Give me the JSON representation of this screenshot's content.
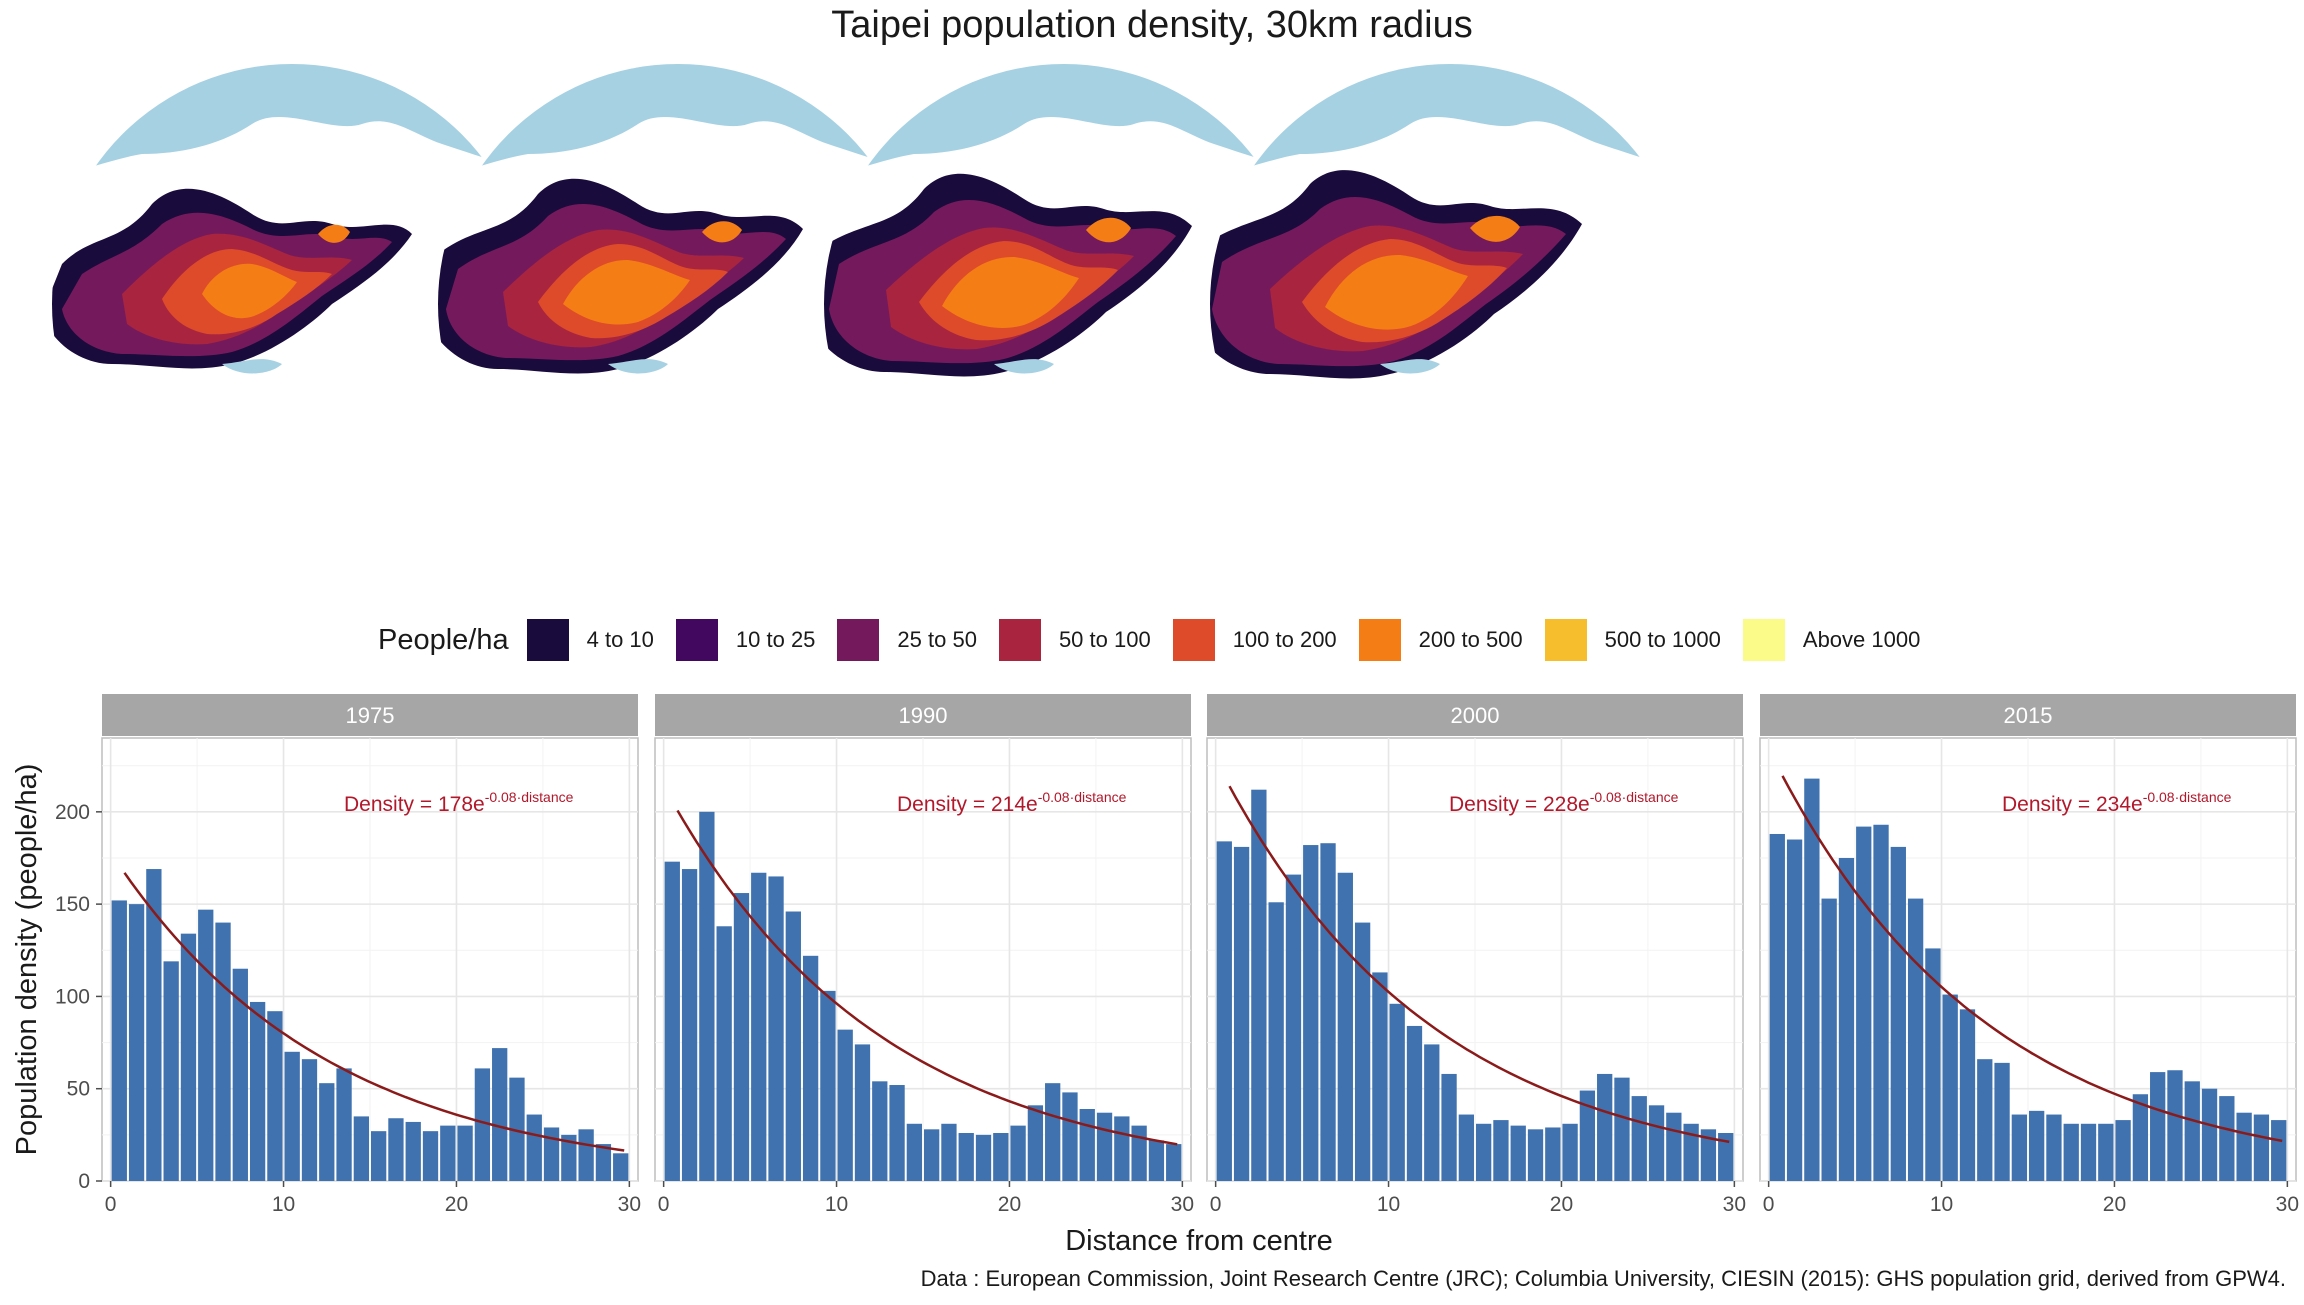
{
  "title": "Taipei population density, 30km radius",
  "legend": {
    "title": "People/ha",
    "items": [
      {
        "label": "4 to 10",
        "color": "#1a0b3d"
      },
      {
        "label": "10 to 25",
        "color": "#42085f"
      },
      {
        "label": "25 to 50",
        "color": "#741a5c"
      },
      {
        "label": "50 to 100",
        "color": "#a9243f"
      },
      {
        "label": "100 to 200",
        "color": "#dd4b2a"
      },
      {
        "label": "200 to 500",
        "color": "#f57d15"
      },
      {
        "label": "500 to 1000",
        "color": "#f6bd2c"
      },
      {
        "label": "Above 1000",
        "color": "#fbfb8a"
      }
    ]
  },
  "colors": {
    "water": "#a6d1e3",
    "bar": "#3f72ae",
    "curve": "#8b1a1a",
    "annotation": "#b2182b",
    "strip": "#a6a6a6",
    "grid": "#e6e6e6"
  },
  "chart_data": [
    {
      "type": "bar",
      "panel": "1975",
      "x": [
        0.5,
        1.5,
        2.5,
        3.5,
        4.5,
        5.5,
        6.5,
        7.5,
        8.5,
        9.5,
        10.5,
        11.5,
        12.5,
        13.5,
        14.5,
        15.5,
        16.5,
        17.5,
        18.5,
        19.5,
        20.5,
        21.5,
        22.5,
        23.5,
        24.5,
        25.5,
        26.5,
        27.5,
        28.5,
        29.5
      ],
      "values": [
        152,
        150,
        169,
        119,
        134,
        147,
        140,
        115,
        97,
        92,
        70,
        66,
        53,
        61,
        35,
        27,
        34,
        32,
        27,
        30,
        30,
        61,
        72,
        56,
        36,
        29,
        25,
        28,
        20,
        15
      ],
      "fit": {
        "a": 178,
        "b": 0.08
      },
      "annotation": {
        "prefix": "Density = 178e",
        "sup": "-0.08·distance"
      },
      "xlabel": "Distance from centre",
      "ylabel": "Population density (people/ha)",
      "xticks": [
        "0",
        "10",
        "20",
        "30"
      ],
      "yticks": [
        "0",
        "50",
        "100",
        "150",
        "200"
      ],
      "xlim": [
        -0.5,
        30.5
      ],
      "ylim": [
        0,
        240
      ]
    },
    {
      "type": "bar",
      "panel": "1990",
      "x": [
        0.5,
        1.5,
        2.5,
        3.5,
        4.5,
        5.5,
        6.5,
        7.5,
        8.5,
        9.5,
        10.5,
        11.5,
        12.5,
        13.5,
        14.5,
        15.5,
        16.5,
        17.5,
        18.5,
        19.5,
        20.5,
        21.5,
        22.5,
        23.5,
        24.5,
        25.5,
        26.5,
        27.5,
        28.5,
        29.5
      ],
      "values": [
        173,
        169,
        200,
        138,
        156,
        167,
        165,
        146,
        122,
        103,
        82,
        74,
        54,
        52,
        31,
        28,
        31,
        26,
        25,
        26,
        30,
        41,
        53,
        48,
        39,
        37,
        35,
        30,
        22,
        20
      ],
      "fit": {
        "a": 214,
        "b": 0.08
      },
      "annotation": {
        "prefix": "Density = 214e",
        "sup": "-0.08·distance"
      },
      "xticks": [
        "0",
        "10",
        "20",
        "30"
      ],
      "xlim": [
        -0.5,
        30.5
      ],
      "ylim": [
        0,
        240
      ]
    },
    {
      "type": "bar",
      "panel": "2000",
      "x": [
        0.5,
        1.5,
        2.5,
        3.5,
        4.5,
        5.5,
        6.5,
        7.5,
        8.5,
        9.5,
        10.5,
        11.5,
        12.5,
        13.5,
        14.5,
        15.5,
        16.5,
        17.5,
        18.5,
        19.5,
        20.5,
        21.5,
        22.5,
        23.5,
        24.5,
        25.5,
        26.5,
        27.5,
        28.5,
        29.5
      ],
      "values": [
        184,
        181,
        212,
        151,
        166,
        182,
        183,
        167,
        140,
        113,
        96,
        84,
        74,
        58,
        36,
        31,
        33,
        30,
        28,
        29,
        31,
        49,
        58,
        56,
        46,
        41,
        37,
        31,
        28,
        26
      ],
      "fit": {
        "a": 228,
        "b": 0.08
      },
      "annotation": {
        "prefix": "Density = 228e",
        "sup": "-0.08·distance"
      },
      "xticks": [
        "0",
        "10",
        "20",
        "30"
      ],
      "xlim": [
        -0.5,
        30.5
      ],
      "ylim": [
        0,
        240
      ]
    },
    {
      "type": "bar",
      "panel": "2015",
      "x": [
        0.5,
        1.5,
        2.5,
        3.5,
        4.5,
        5.5,
        6.5,
        7.5,
        8.5,
        9.5,
        10.5,
        11.5,
        12.5,
        13.5,
        14.5,
        15.5,
        16.5,
        17.5,
        18.5,
        19.5,
        20.5,
        21.5,
        22.5,
        23.5,
        24.5,
        25.5,
        26.5,
        27.5,
        28.5,
        29.5
      ],
      "values": [
        188,
        185,
        218,
        153,
        175,
        192,
        193,
        181,
        153,
        126,
        101,
        93,
        66,
        64,
        36,
        38,
        36,
        31,
        31,
        31,
        33,
        47,
        59,
        60,
        54,
        50,
        46,
        37,
        36,
        33
      ],
      "fit": {
        "a": 234,
        "b": 0.08
      },
      "annotation": {
        "prefix": "Density = 234e",
        "sup": "-0.08·distance"
      },
      "xticks": [
        "0",
        "10",
        "20",
        "30"
      ],
      "xlim": [
        -0.5,
        30.5
      ],
      "ylim": [
        0,
        240
      ]
    }
  ],
  "caption": "Data : European Commission, Joint Research Centre (JRC); Columbia University, CIESIN (2015): GHS population grid, derived from GPW4."
}
